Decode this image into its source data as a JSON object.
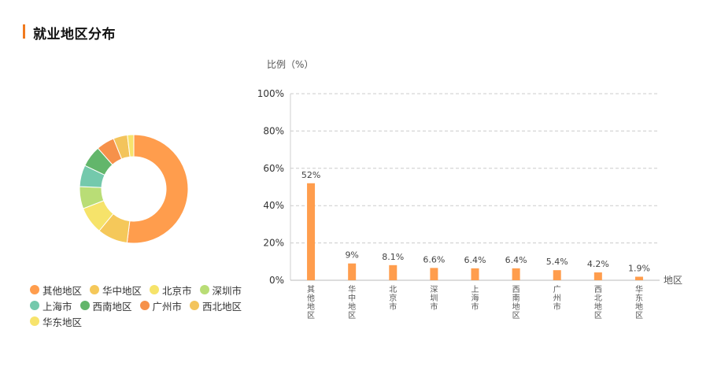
{
  "header": {
    "title": "就业地区分布"
  },
  "colors": {
    "accent": "#f07a1f",
    "palette": [
      "#ff9d4d",
      "#f5c85a",
      "#f6e36a",
      "#b9dd76",
      "#74c9ac",
      "#63b66b",
      "#f6914a",
      "#f3c45c",
      "#f7e36c"
    ]
  },
  "chart_data": [
    {
      "type": "pie",
      "donut": true,
      "slices": [
        {
          "label": "其他地区",
          "value": 52
        },
        {
          "label": "华中地区",
          "value": 9
        },
        {
          "label": "北京市",
          "value": 8.1
        },
        {
          "label": "深圳市",
          "value": 6.6
        },
        {
          "label": "上海市",
          "value": 6.4
        },
        {
          "label": "西南地区",
          "value": 6.4
        },
        {
          "label": "广州市",
          "value": 5.4
        },
        {
          "label": "西北地区",
          "value": 4.2
        },
        {
          "label": "华东地区",
          "value": 1.9
        }
      ]
    },
    {
      "type": "bar",
      "categories": [
        "其他地区",
        "华中地区",
        "北京市",
        "深圳市",
        "上海市",
        "西南地区",
        "广州市",
        "西北地区",
        "华东地区"
      ],
      "values": [
        52,
        9,
        8.1,
        6.6,
        6.4,
        6.4,
        5.4,
        4.2,
        1.9
      ],
      "value_labels": [
        "52%",
        "9%",
        "8.1%",
        "6.6%",
        "6.4%",
        "6.4%",
        "5.4%",
        "4.2%",
        "1.9%"
      ],
      "ylabel": "比例（%）",
      "xlabel": "地区",
      "ylim": [
        0,
        100
      ],
      "yticks": [
        "0%",
        "20%",
        "40%",
        "60%",
        "80%",
        "100%"
      ],
      "grid": true,
      "bar_color": "#ff9d4d"
    }
  ],
  "legend_rows": [
    [
      "0",
      "1",
      "2",
      "3"
    ],
    [
      "4",
      "5",
      "6",
      "7"
    ],
    [
      "8"
    ]
  ]
}
